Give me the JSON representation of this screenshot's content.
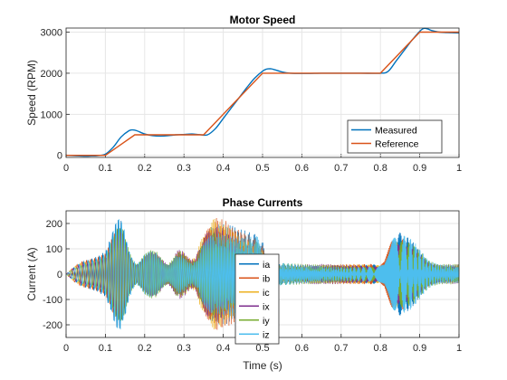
{
  "chart_data": [
    {
      "type": "line",
      "title": "Motor Speed",
      "xlabel": "",
      "ylabel": "Speed (RPM)",
      "xlim": [
        0,
        1
      ],
      "ylim": [
        -50,
        3100
      ],
      "xticks": [
        "0",
        "0.1",
        "0.2",
        "0.3",
        "0.4",
        "0.5",
        "0.6",
        "0.7",
        "0.8",
        "0.9",
        "1"
      ],
      "yticks": [
        "0",
        "1000",
        "2000",
        "3000"
      ],
      "grid": true,
      "legend_position": "bottom-right",
      "series": [
        {
          "name": "Measured",
          "color": "#0072BD",
          "x": [
            0,
            0.02,
            0.04,
            0.05,
            0.06,
            0.08,
            0.1,
            0.12,
            0.14,
            0.16,
            0.17,
            0.18,
            0.2,
            0.22,
            0.24,
            0.26,
            0.28,
            0.3,
            0.32,
            0.34,
            0.36,
            0.38,
            0.4,
            0.42,
            0.44,
            0.46,
            0.48,
            0.5,
            0.51,
            0.52,
            0.53,
            0.55,
            0.57,
            0.6,
            0.65,
            0.7,
            0.75,
            0.8,
            0.82,
            0.84,
            0.86,
            0.88,
            0.9,
            0.91,
            0.92,
            0.93,
            0.95,
            0.97,
            1.0
          ],
          "y": [
            0,
            -5,
            -15,
            -20,
            -15,
            -5,
            30,
            200,
            450,
            600,
            620,
            600,
            520,
            480,
            470,
            480,
            500,
            510,
            520,
            505,
            500,
            650,
            900,
            1150,
            1400,
            1650,
            1880,
            2050,
            2100,
            2110,
            2090,
            2030,
            2000,
            1995,
            2000,
            2000,
            2000,
            2000,
            2050,
            2300,
            2550,
            2800,
            3020,
            3090,
            3080,
            3040,
            3000,
            2990,
            2980
          ]
        },
        {
          "name": "Reference",
          "color": "#D95319",
          "x": [
            0,
            0.1,
            0.175,
            0.35,
            0.5,
            0.8,
            0.9,
            1.0
          ],
          "y": [
            0,
            0,
            500,
            500,
            2000,
            2000,
            3000,
            3000
          ]
        }
      ]
    },
    {
      "type": "line",
      "title": "Phase Currents",
      "xlabel": "Time (s)",
      "ylabel": "Current (A)",
      "xlim": [
        0,
        1
      ],
      "ylim": [
        -250,
        250
      ],
      "xticks": [
        "0",
        "0.1",
        "0.2",
        "0.3",
        "0.4",
        "0.5",
        "0.6",
        "0.7",
        "0.8",
        "0.9",
        "1"
      ],
      "yticks": [
        "-200",
        "-100",
        "0",
        "100",
        "200"
      ],
      "grid": true,
      "legend_position": "bottom-center",
      "envelope": {
        "t": [
          0,
          0.02,
          0.04,
          0.06,
          0.08,
          0.1,
          0.11,
          0.12,
          0.13,
          0.14,
          0.15,
          0.16,
          0.17,
          0.18,
          0.19,
          0.2,
          0.21,
          0.22,
          0.23,
          0.24,
          0.25,
          0.26,
          0.27,
          0.28,
          0.29,
          0.3,
          0.31,
          0.32,
          0.33,
          0.34,
          0.35,
          0.36,
          0.37,
          0.38,
          0.39,
          0.4,
          0.42,
          0.44,
          0.46,
          0.48,
          0.5,
          0.505,
          0.51,
          0.52,
          0.55,
          0.6,
          0.65,
          0.7,
          0.75,
          0.78,
          0.8,
          0.81,
          0.82,
          0.83,
          0.84,
          0.85,
          0.86,
          0.87,
          0.88,
          0.89,
          0.9,
          0.91,
          0.92,
          0.93,
          0.95,
          1.0
        ],
        "amp": [
          0,
          30,
          50,
          60,
          70,
          90,
          130,
          180,
          220,
          225,
          170,
          100,
          60,
          40,
          60,
          80,
          90,
          100,
          90,
          70,
          50,
          40,
          60,
          90,
          100,
          90,
          70,
          60,
          70,
          120,
          170,
          200,
          220,
          225,
          220,
          215,
          200,
          180,
          170,
          160,
          155,
          100,
          60,
          45,
          45,
          40,
          40,
          40,
          40,
          40,
          40,
          50,
          100,
          150,
          170,
          165,
          160,
          150,
          140,
          120,
          100,
          80,
          60,
          50,
          40,
          40
        ]
      },
      "series": [
        {
          "name": "ia",
          "color": "#0072BD",
          "phase": 0.0
        },
        {
          "name": "ib",
          "color": "#D95319",
          "phase": 2.094
        },
        {
          "name": "ic",
          "color": "#EDB120",
          "phase": 4.189
        },
        {
          "name": "ix",
          "color": "#7E2F8E",
          "phase": 0.52
        },
        {
          "name": "iy",
          "color": "#77AC30",
          "phase": 2.62
        },
        {
          "name": "iz",
          "color": "#4DBEEE",
          "phase": 4.71
        }
      ]
    }
  ]
}
